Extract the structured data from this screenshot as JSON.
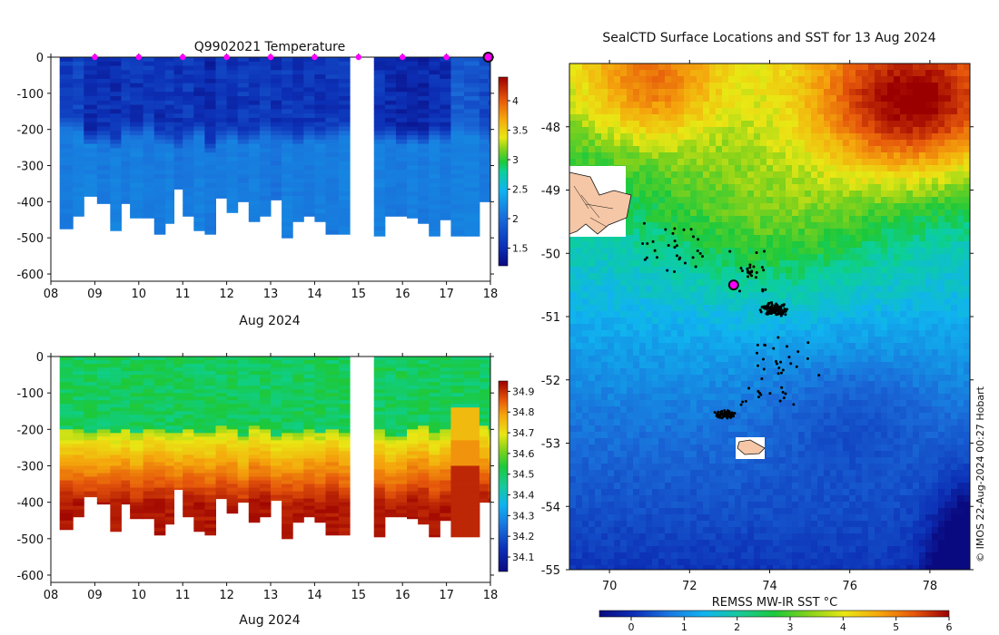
{
  "title": "Q9902021  Temperature",
  "map_title": "SealCTD Surface Locations and SST for 13 Aug 2024",
  "credit": "© IMOS 22-Aug-2024 00:27 Hobart",
  "colors": {
    "profile_marker": "#ff00ff",
    "track": "#000000",
    "land": "#f5c7a6"
  },
  "chart_data": [
    {
      "type": "heatmap",
      "name": "temperature-section",
      "title": "Q9902021  Temperature",
      "xlabel": "Aug 2024",
      "ylabel": "",
      "xlim": [
        8,
        18
      ],
      "ylim": [
        -620,
        0
      ],
      "x_ticks": [
        "08",
        "09",
        "10",
        "11",
        "12",
        "13",
        "14",
        "15",
        "16",
        "17",
        "18"
      ],
      "y_ticks": [
        "0",
        "-100",
        "-200",
        "-300",
        "-400",
        "-500",
        "-600"
      ],
      "colorbar": {
        "min": 1.2,
        "max": 4.4,
        "ticks": [
          "1.5",
          "2",
          "2.5",
          "3",
          "3.5",
          "4"
        ]
      },
      "profiles": [
        {
          "t": 8.2,
          "depth": 475,
          "ml": 150,
          "cold": 1.6,
          "deep": 2.05
        },
        {
          "t": 8.5,
          "depth": 440,
          "ml": 160,
          "cold": 1.7,
          "deep": 2.1
        },
        {
          "t": 8.75,
          "depth": 385,
          "ml": 200,
          "cold": 1.5,
          "deep": 2.1
        },
        {
          "t": 9.05,
          "depth": 405,
          "ml": 190,
          "cold": 1.55,
          "deep": 2.05
        },
        {
          "t": 9.35,
          "depth": 480,
          "ml": 210,
          "cold": 1.5,
          "deep": 2.1
        },
        {
          "t": 9.6,
          "depth": 405,
          "ml": 170,
          "cold": 1.6,
          "deep": 2.05
        },
        {
          "t": 9.8,
          "depth": 445,
          "ml": 180,
          "cold": 1.55,
          "deep": 2.1
        },
        {
          "t": 10.1,
          "depth": 445,
          "ml": 160,
          "cold": 1.6,
          "deep": 2.05
        },
        {
          "t": 10.35,
          "depth": 490,
          "ml": 190,
          "cold": 1.5,
          "deep": 2.05
        },
        {
          "t": 10.6,
          "depth": 460,
          "ml": 200,
          "cold": 1.6,
          "deep": 2.1
        },
        {
          "t": 10.8,
          "depth": 365,
          "ml": 210,
          "cold": 1.55,
          "deep": 2.0
        },
        {
          "t": 11.0,
          "depth": 440,
          "ml": 190,
          "cold": 1.6,
          "deep": 2.05
        },
        {
          "t": 11.25,
          "depth": 480,
          "ml": 170,
          "cold": 1.5,
          "deep": 2.1
        },
        {
          "t": 11.5,
          "depth": 490,
          "ml": 220,
          "cold": 1.45,
          "deep": 2.05
        },
        {
          "t": 11.75,
          "depth": 390,
          "ml": 190,
          "cold": 1.6,
          "deep": 2.05
        },
        {
          "t": 12.0,
          "depth": 430,
          "ml": 180,
          "cold": 1.55,
          "deep": 2.1
        },
        {
          "t": 12.25,
          "depth": 400,
          "ml": 200,
          "cold": 1.6,
          "deep": 2.05
        },
        {
          "t": 12.5,
          "depth": 455,
          "ml": 190,
          "cold": 1.55,
          "deep": 2.1
        },
        {
          "t": 12.75,
          "depth": 440,
          "ml": 170,
          "cold": 1.6,
          "deep": 2.05
        },
        {
          "t": 13.0,
          "depth": 395,
          "ml": 180,
          "cold": 1.55,
          "deep": 2.0
        },
        {
          "t": 13.25,
          "depth": 500,
          "ml": 190,
          "cold": 1.6,
          "deep": 2.1
        },
        {
          "t": 13.5,
          "depth": 455,
          "ml": 200,
          "cold": 1.55,
          "deep": 2.05
        },
        {
          "t": 13.75,
          "depth": 440,
          "ml": 180,
          "cold": 1.6,
          "deep": 2.05
        },
        {
          "t": 14.0,
          "depth": 455,
          "ml": 190,
          "cold": 1.55,
          "deep": 2.1
        },
        {
          "t": 14.25,
          "depth": 490,
          "ml": 180,
          "cold": 1.6,
          "deep": 2.05
        },
        {
          "t": 14.55,
          "depth": 490,
          "ml": 170,
          "cold": 1.6,
          "deep": 2.1
        },
        {
          "t": 15.35,
          "depth": 495,
          "ml": 190,
          "cold": 1.55,
          "deep": 2.1
        },
        {
          "t": 15.6,
          "depth": 440,
          "ml": 180,
          "cold": 1.5,
          "deep": 2.05
        },
        {
          "t": 15.85,
          "depth": 440,
          "ml": 200,
          "cold": 1.45,
          "deep": 2.05
        },
        {
          "t": 16.1,
          "depth": 445,
          "ml": 190,
          "cold": 1.4,
          "deep": 2.1
        },
        {
          "t": 16.35,
          "depth": 460,
          "ml": 200,
          "cold": 1.45,
          "deep": 2.05
        },
        {
          "t": 16.6,
          "depth": 495,
          "ml": 180,
          "cold": 1.5,
          "deep": 2.1
        },
        {
          "t": 16.85,
          "depth": 450,
          "ml": 190,
          "cold": 1.5,
          "deep": 2.05
        },
        {
          "t": 17.1,
          "depth": 495,
          "ml": 160,
          "cold": 1.9,
          "deep": 2.1
        },
        {
          "t": 17.4,
          "depth": 495,
          "ml": 170,
          "cold": 1.85,
          "deep": 2.1
        },
        {
          "t": 17.75,
          "depth": 400,
          "ml": 180,
          "cold": 1.75,
          "deep": 2.05
        },
        {
          "t": 17.95,
          "depth": 400,
          "ml": 190,
          "cold": 1.7,
          "deep": 2.05
        }
      ],
      "markers": [
        9,
        10,
        11,
        12,
        13,
        14,
        15,
        16,
        17
      ]
    },
    {
      "type": "heatmap",
      "name": "salinity-section",
      "title": "",
      "xlabel": "Aug 2024",
      "ylabel": "",
      "xlim": [
        8,
        18
      ],
      "ylim": [
        -620,
        0
      ],
      "x_ticks": [
        "08",
        "09",
        "10",
        "11",
        "12",
        "13",
        "14",
        "15",
        "16",
        "17",
        "18"
      ],
      "y_ticks": [
        "0",
        "-100",
        "-200",
        "-300",
        "-400",
        "-500",
        "-600"
      ],
      "colorbar": {
        "min": 34.03,
        "max": 34.95,
        "ticks": [
          "34.1",
          "34.2",
          "34.3",
          "34.4",
          "34.5",
          "34.6",
          "34.7",
          "34.8",
          "34.9"
        ]
      },
      "halocline_depth": 200
    },
    {
      "type": "heatmap",
      "name": "sst-map",
      "title": "SealCTD Surface Locations and SST for 13 Aug 2024",
      "xlim": [
        69,
        79
      ],
      "ylim": [
        -55,
        -47
      ]
    }
  ],
  "map": {
    "x_ticks": [
      "70",
      "72",
      "74",
      "76",
      "78"
    ],
    "y_ticks": [
      "-48",
      "-49",
      "-50",
      "-51",
      "-52",
      "-53",
      "-54",
      "-55"
    ],
    "colorbar": {
      "label": "REMSS MW-IR SST °C",
      "min": -0.6,
      "max": 6,
      "ticks": [
        "0",
        "1",
        "2",
        "3",
        "4",
        "5",
        "6"
      ]
    },
    "current_position": {
      "lon": 73.1,
      "lat": -50.5
    }
  }
}
